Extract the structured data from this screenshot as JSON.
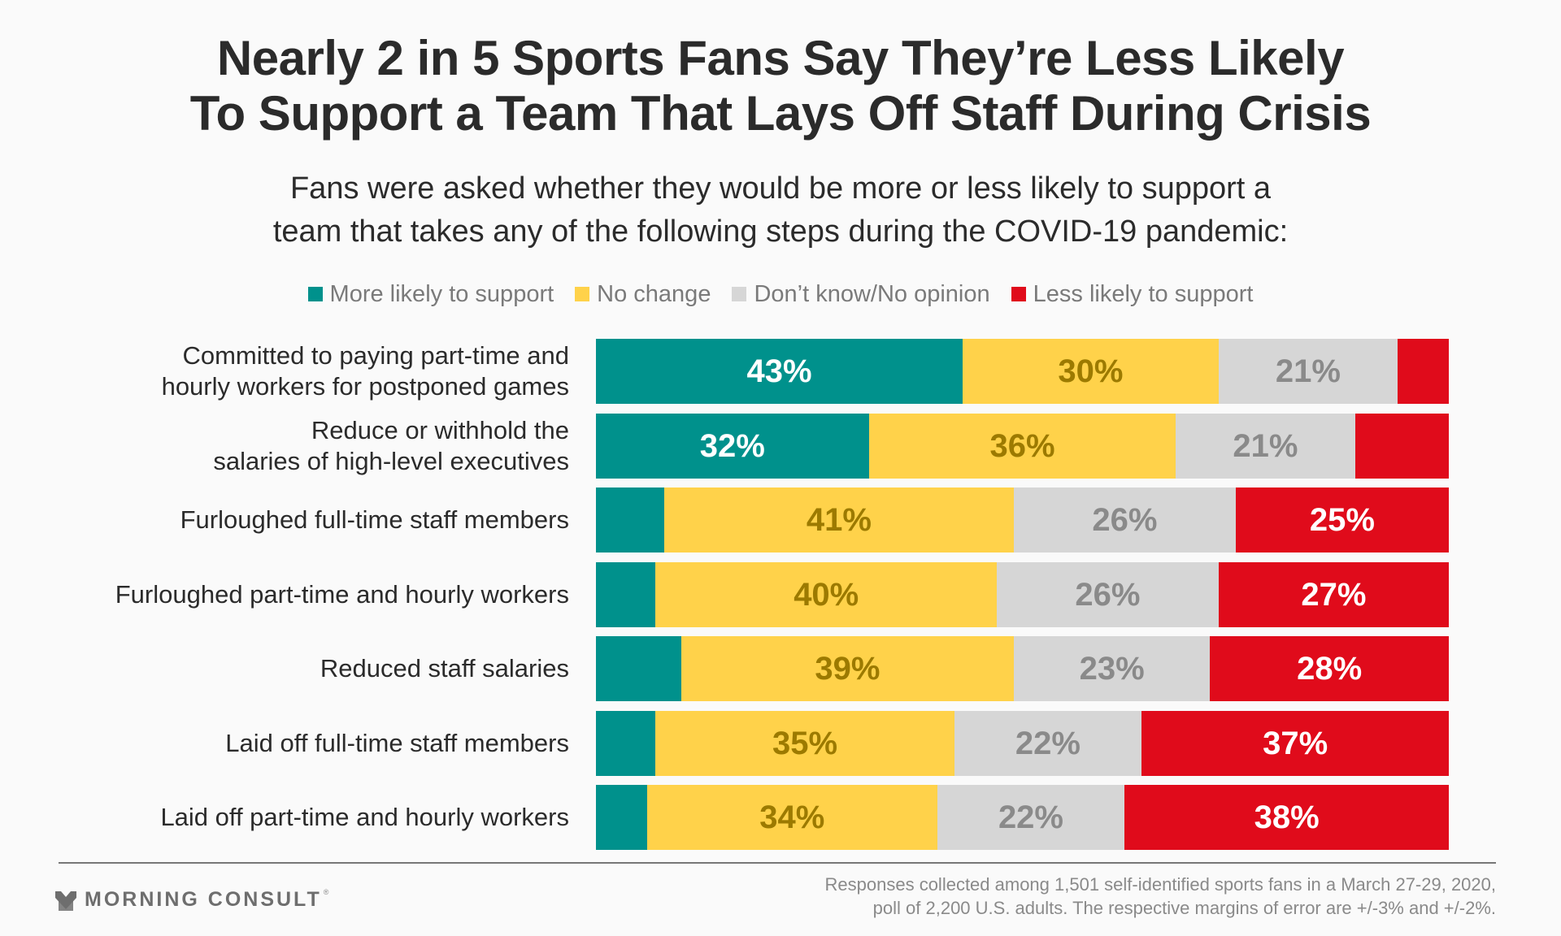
{
  "header": {
    "title_line1": "Nearly 2 in 5 Sports Fans Say They’re Less Likely",
    "title_line2": "To Support a Team That Lays Off Staff During Crisis",
    "subtitle_line1": "Fans were asked whether they would be more or less likely to support a",
    "subtitle_line2": "team that takes any of the following steps during the COVID-19 pandemic:"
  },
  "colors": {
    "more": "#00918c",
    "nochange": "#ffd24a",
    "dontknow": "#d6d6d6",
    "less": "#e00b1b",
    "label_on_more": "#ffffff",
    "label_on_nochange": "#9c7a00",
    "label_on_dontknow": "#8a8a8a",
    "label_on_less": "#ffffff"
  },
  "chart_data": {
    "type": "bar",
    "orientation": "horizontal",
    "stacked": true,
    "title": "Nearly 2 in 5 Sports Fans Say They’re Less Likely To Support a Team That Lays Off Staff During Crisis",
    "subtitle": "Fans were asked whether they would be more or less likely to support a team that takes any of the following steps during the COVID-19 pandemic:",
    "xlabel": "",
    "ylabel": "",
    "xlim": [
      0,
      100
    ],
    "grid": false,
    "legend_position": "top",
    "categories": [
      [
        "Committed to paying part-time and",
        "hourly workers for postponed games"
      ],
      [
        "Reduce or withhold the",
        "salaries of high-level executives"
      ],
      [
        "Furloughed full-time staff members"
      ],
      [
        "Furloughed part-time and hourly workers"
      ],
      [
        "Reduced staff salaries"
      ],
      [
        "Laid off full-time staff members"
      ],
      [
        "Laid off part-time and hourly workers"
      ]
    ],
    "series": [
      {
        "key": "more",
        "name": "More likely to support",
        "values": [
          43,
          32,
          8,
          7,
          10,
          7,
          6
        ],
        "labeled": [
          true,
          true,
          false,
          false,
          false,
          false,
          false
        ]
      },
      {
        "key": "nochange",
        "name": "No change",
        "values": [
          30,
          36,
          41,
          40,
          39,
          35,
          34
        ],
        "labeled": [
          true,
          true,
          true,
          true,
          true,
          true,
          true
        ]
      },
      {
        "key": "dontknow",
        "name": "Don’t know/No opinion",
        "values": [
          21,
          21,
          26,
          26,
          23,
          22,
          22
        ],
        "labeled": [
          true,
          true,
          true,
          true,
          true,
          true,
          true
        ]
      },
      {
        "key": "less",
        "name": "Less likely to support",
        "values": [
          6,
          11,
          25,
          27,
          28,
          37,
          38
        ],
        "labeled": [
          false,
          false,
          true,
          true,
          true,
          true,
          true
        ]
      }
    ],
    "value_suffix": "%"
  },
  "legend": [
    {
      "key": "more",
      "label": "More likely to support"
    },
    {
      "key": "nochange",
      "label": "No change"
    },
    {
      "key": "dontknow",
      "label": "Don’t know/No opinion"
    },
    {
      "key": "less",
      "label": "Less likely to support"
    }
  ],
  "footer": {
    "logo_text": "MORNING CONSULT",
    "logo_reg": "®",
    "note_line1": "Responses collected among 1,501 self-identified sports fans in a March 27-29, 2020,",
    "note_line2": "poll of 2,200 U.S. adults. The respective margins of error are +/-3% and +/-2%."
  }
}
